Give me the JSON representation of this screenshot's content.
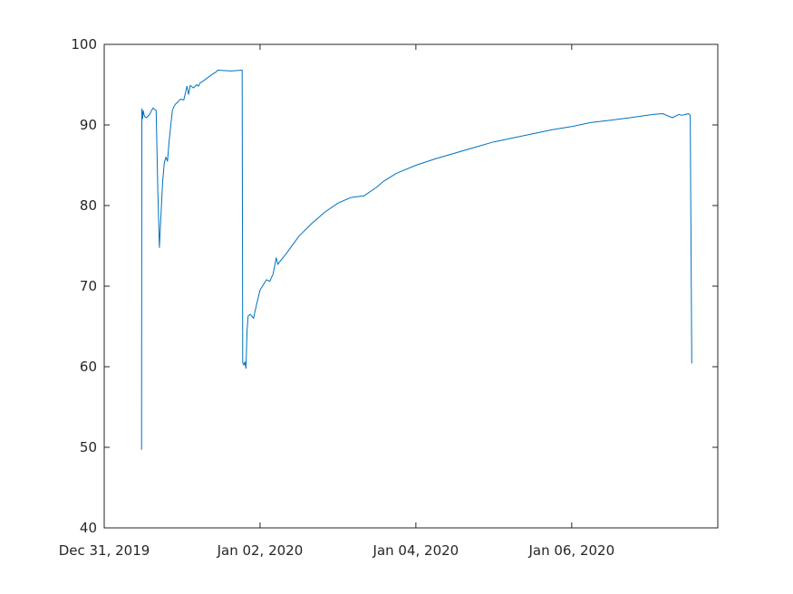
{
  "chart_data": {
    "type": "line",
    "title": "",
    "xlabel": "",
    "ylabel": "",
    "xlim": [
      "2019-12-31T00:00",
      "2020-01-07T21:00"
    ],
    "ylim": [
      40,
      100
    ],
    "grid": false,
    "y_ticks": [
      {
        "value": 40,
        "label": "40"
      },
      {
        "value": 50,
        "label": "50"
      },
      {
        "value": 60,
        "label": "60"
      },
      {
        "value": 70,
        "label": "70"
      },
      {
        "value": 80,
        "label": "80"
      },
      {
        "value": 90,
        "label": "90"
      },
      {
        "value": 100,
        "label": "100"
      }
    ],
    "x_ticks": [
      {
        "value": "2019-12-31T00:00",
        "label": "Dec 31, 2019"
      },
      {
        "value": "2020-01-02T00:00",
        "label": "Jan 02, 2020"
      },
      {
        "value": "2020-01-04T00:00",
        "label": "Jan 04, 2020"
      },
      {
        "value": "2020-01-06T00:00",
        "label": "Jan 06, 2020"
      }
    ],
    "series": [
      {
        "color": "#0072BD",
        "x": [
          "2019-12-31T11:30",
          "2019-12-31T11:35",
          "2019-12-31T11:50",
          "2019-12-31T12:00",
          "2019-12-31T12:15",
          "2019-12-31T12:30",
          "2019-12-31T13:00",
          "2019-12-31T14:00",
          "2019-12-31T15:00",
          "2019-12-31T16:00",
          "2019-12-31T16:30",
          "2019-12-31T17:00",
          "2019-12-31T17:30",
          "2019-12-31T18:00",
          "2019-12-31T18:30",
          "2019-12-31T19:00",
          "2019-12-31T19:30",
          "2019-12-31T20:00",
          "2019-12-31T21:00",
          "2019-12-31T21:30",
          "2019-12-31T22:00",
          "2019-12-31T22:30",
          "2019-12-31T23:00",
          "2019-12-31T23:30",
          "2020-01-01T00:30",
          "2020-01-01T01:30",
          "2020-01-01T02:00",
          "2020-01-01T02:30",
          "2020-01-01T03:30",
          "2020-01-01T04:30",
          "2020-01-01T05:00",
          "2020-01-01T05:30",
          "2020-01-01T07:00",
          "2020-01-01T09:00",
          "2020-01-01T10:30",
          "2020-01-01T11:00",
          "2020-01-01T15:00",
          "2020-01-01T18:30",
          "2020-01-01T18:40",
          "2020-01-01T19:00",
          "2020-01-01T19:20",
          "2020-01-01T19:40",
          "2020-01-01T20:00",
          "2020-01-01T20:20",
          "2020-01-01T21:00",
          "2020-01-01T22:00",
          "2020-01-01T22:30",
          "2020-01-02T00:00",
          "2020-01-02T02:00",
          "2020-01-02T03:00",
          "2020-01-02T04:00",
          "2020-01-02T05:00",
          "2020-01-02T05:30",
          "2020-01-02T06:00",
          "2020-01-02T08:00",
          "2020-01-02T12:00",
          "2020-01-02T16:00",
          "2020-01-02T20:00",
          "2020-01-03T00:00",
          "2020-01-03T04:00",
          "2020-01-03T08:00",
          "2020-01-03T12:00",
          "2020-01-03T14:00",
          "2020-01-03T18:00",
          "2020-01-04T00:00",
          "2020-01-04T06:00",
          "2020-01-04T12:00",
          "2020-01-04T18:00",
          "2020-01-05T00:00",
          "2020-01-05T06:00",
          "2020-01-05T12:00",
          "2020-01-05T18:00",
          "2020-01-06T00:00",
          "2020-01-06T06:00",
          "2020-01-06T12:00",
          "2020-01-06T18:00",
          "2020-01-07T01:00",
          "2020-01-07T04:00",
          "2020-01-07T07:00",
          "2020-01-07T09:00",
          "2020-01-07T10:00",
          "2020-01-07T11:00",
          "2020-01-07T12:00",
          "2020-01-07T12:30",
          "2020-01-07T13:00"
        ],
        "y": [
          49.7,
          92.0,
          90.8,
          91.8,
          91.3,
          91.0,
          90.9,
          91.3,
          92.1,
          91.8,
          82.0,
          74.8,
          79.0,
          83.0,
          85.3,
          86.0,
          85.5,
          88.0,
          91.8,
          92.3,
          92.6,
          92.8,
          93.0,
          93.2,
          93.1,
          94.8,
          93.8,
          94.9,
          94.6,
          95.0,
          94.8,
          95.2,
          95.6,
          96.2,
          96.6,
          96.8,
          96.7,
          96.8,
          60.5,
          60.2,
          60.6,
          59.8,
          64.5,
          66.3,
          66.5,
          66.0,
          67.0,
          69.5,
          70.8,
          70.6,
          71.5,
          73.5,
          72.7,
          73.0,
          74.0,
          76.2,
          77.8,
          79.2,
          80.3,
          81.0,
          81.2,
          82.3,
          83.0,
          84.0,
          85.0,
          85.8,
          86.5,
          87.2,
          87.9,
          88.4,
          88.9,
          89.4,
          89.8,
          90.3,
          90.6,
          90.9,
          91.3,
          91.4,
          90.9,
          91.3,
          91.2,
          91.3,
          91.4,
          91.2,
          60.4
        ]
      }
    ]
  }
}
